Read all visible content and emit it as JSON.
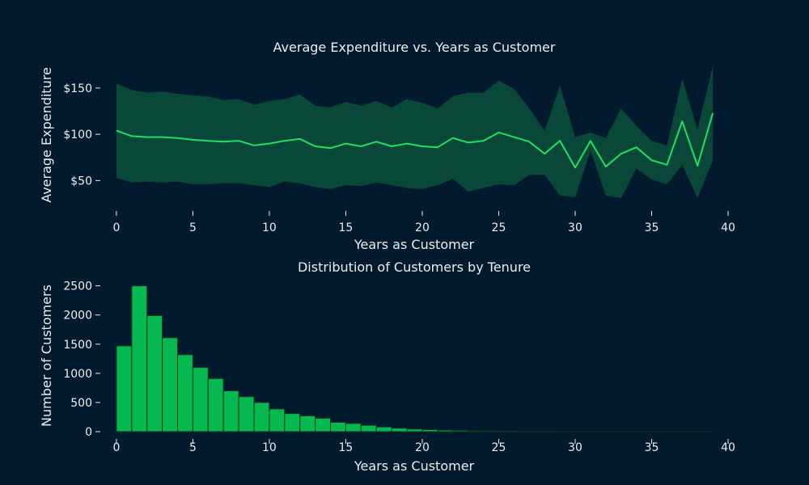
{
  "colors": {
    "background": "#021a2e",
    "line": "#1fe063",
    "band": "#0a4a3a",
    "bar": "#05b84f",
    "bar_edge": "#08361f",
    "text": "#e8f0f2"
  },
  "chart_data": [
    {
      "type": "line",
      "title": "Average Expenditure vs. Years as Customer",
      "xlabel": "Years as Customer",
      "ylabel": "Average Expenditure",
      "xlim": [
        -1,
        40
      ],
      "ylim": [
        25,
        177
      ],
      "xticks": [
        0,
        5,
        10,
        15,
        20,
        25,
        30,
        35,
        40
      ],
      "xtick_labels": [
        "0",
        "5",
        "10",
        "15",
        "20",
        "25",
        "30",
        "35",
        "40"
      ],
      "yticks": [
        50,
        100,
        150
      ],
      "ytick_labels": [
        "$50",
        "$100",
        "$150"
      ],
      "grid": false,
      "band": "confidence interval around the mean",
      "series": [
        {
          "x": [
            0,
            1,
            2,
            3,
            4,
            5,
            6,
            7,
            8,
            9,
            10,
            11,
            12,
            13,
            14,
            15,
            16,
            17,
            18,
            19,
            20,
            21,
            22,
            23,
            24,
            25,
            26,
            27,
            28,
            29,
            30,
            31,
            32,
            33,
            34,
            35,
            36,
            37,
            38,
            39
          ],
          "y": [
            104,
            98,
            97,
            97,
            96,
            94,
            93,
            92,
            93,
            88,
            90,
            93,
            95,
            87,
            85,
            90,
            87,
            92,
            87,
            90,
            87,
            86,
            96,
            91,
            93,
            102,
            97,
            92,
            79,
            93,
            64,
            93,
            65,
            79,
            86,
            72,
            67,
            114,
            66,
            123
          ],
          "upper": [
            155,
            148,
            145,
            146,
            144,
            142,
            141,
            137,
            138,
            132,
            136,
            138,
            143,
            131,
            129,
            135,
            131,
            136,
            129,
            138,
            134,
            128,
            141,
            145,
            145,
            158,
            149,
            128,
            104,
            153,
            97,
            102,
            96,
            128,
            109,
            93,
            88,
            160,
            105,
            174
          ],
          "lower": [
            53,
            48,
            49,
            48,
            49,
            46,
            46,
            47,
            47,
            45,
            43,
            49,
            47,
            43,
            41,
            45,
            44,
            48,
            45,
            42,
            41,
            45,
            52,
            38,
            42,
            46,
            45,
            56,
            56,
            34,
            32,
            82,
            34,
            31,
            63,
            51,
            46,
            67,
            31,
            72
          ]
        }
      ]
    },
    {
      "type": "bar",
      "title": "Distribution of Customers by Tenure",
      "xlabel": "Years as Customer",
      "ylabel": "Number of Customers",
      "xlim": [
        -1,
        40
      ],
      "ylim": [
        0,
        2550
      ],
      "xticks": [
        0,
        5,
        10,
        15,
        20,
        25,
        30,
        35,
        40
      ],
      "xtick_labels": [
        "0",
        "5",
        "10",
        "15",
        "20",
        "25",
        "30",
        "35",
        "40"
      ],
      "yticks": [
        0,
        500,
        1000,
        1500,
        2000,
        2500
      ],
      "ytick_labels": [
        "0",
        "500",
        "1000",
        "1500",
        "2000",
        "2500"
      ],
      "grid": false,
      "bins_start": 0,
      "bin_width": 1,
      "values": [
        1470,
        2500,
        1990,
        1610,
        1320,
        1100,
        910,
        700,
        600,
        500,
        390,
        310,
        270,
        230,
        160,
        140,
        110,
        80,
        60,
        45,
        35,
        25,
        20,
        15,
        10,
        8,
        6,
        5,
        4,
        3,
        3,
        2,
        2,
        1,
        1,
        1,
        1,
        1,
        1,
        0
      ]
    }
  ]
}
